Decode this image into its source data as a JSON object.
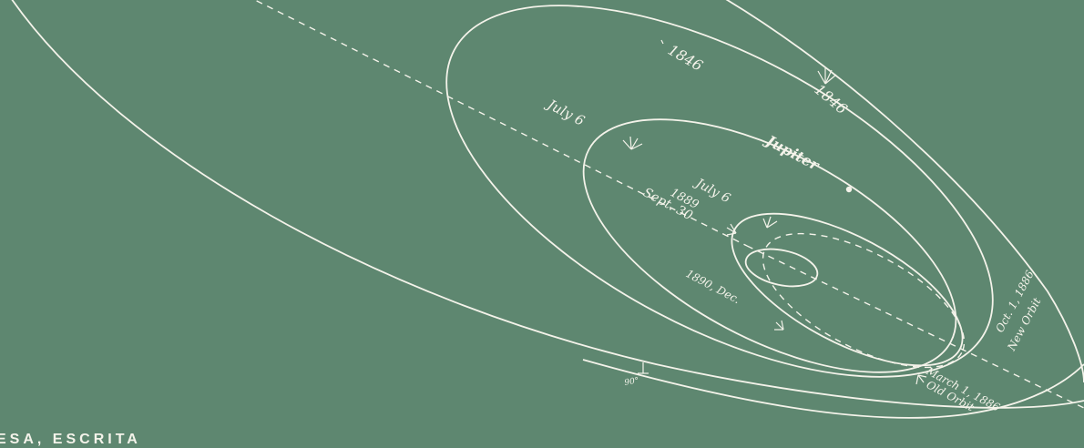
{
  "labels": {
    "l1846a": "1846",
    "l1846b": "1846",
    "july6a": "July 6",
    "jupiter": "Jupiter",
    "july6b": "July 6",
    "y1889": "1889",
    "sept30": "Sept. 30",
    "dec1890": "1890, Dec.",
    "oct": "Oct. 1, 1886",
    "new_orbit": "New Orbit",
    "march": "March 1, 1886",
    "old_orbit": "Old Orbit",
    "deg90": "90°"
  },
  "caption": "ESA, ESCRITA",
  "colors": {
    "background": "#5e8770",
    "ink": "#f4f3ea"
  }
}
